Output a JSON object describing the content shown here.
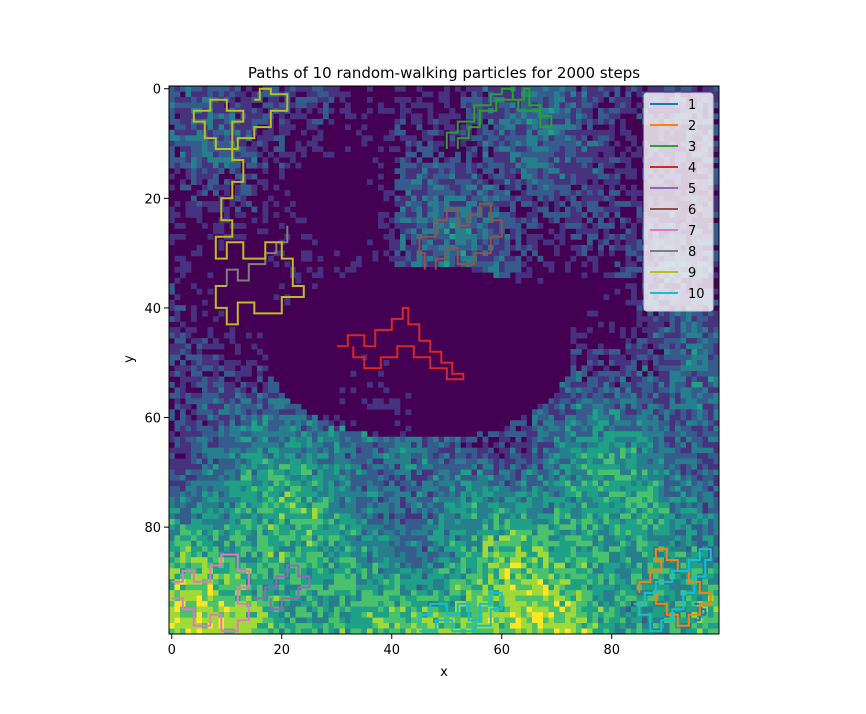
{
  "chart_data": {
    "type": "heatmap",
    "title": "Paths of 10 random-walking particles for 2000 steps",
    "xlabel": "x",
    "ylabel": "y",
    "xlim": [
      0,
      99
    ],
    "ylim": [
      99,
      0
    ],
    "y_inverted": true,
    "grid": false,
    "xticks": [
      0,
      20,
      40,
      60,
      80
    ],
    "yticks": [
      0,
      20,
      40,
      60,
      80
    ],
    "colormap": "viridis",
    "legend": {
      "placement": "top-right"
    },
    "series": [
      {
        "name": "1",
        "color": "#1f77b4",
        "points": [
          [
            95,
            94
          ],
          [
            96,
            94
          ],
          [
            96,
            95
          ],
          [
            97,
            95
          ],
          [
            97,
            96
          ],
          [
            96,
            96
          ],
          [
            96,
            97
          ],
          [
            95,
            97
          ]
        ]
      },
      {
        "name": "2",
        "color": "#ff7f0e",
        "points": [
          [
            85,
            92
          ],
          [
            85,
            90
          ],
          [
            87,
            90
          ],
          [
            87,
            88
          ],
          [
            89,
            88
          ],
          [
            89,
            86
          ],
          [
            88,
            86
          ],
          [
            88,
            84
          ],
          [
            90,
            84
          ],
          [
            90,
            86
          ],
          [
            92,
            86
          ],
          [
            92,
            88
          ],
          [
            94,
            88
          ],
          [
            94,
            90
          ],
          [
            96,
            90
          ],
          [
            96,
            92
          ],
          [
            98,
            92
          ],
          [
            98,
            94
          ],
          [
            96,
            94
          ],
          [
            96,
            96
          ],
          [
            94,
            96
          ],
          [
            94,
            98
          ],
          [
            92,
            98
          ],
          [
            92,
            96
          ],
          [
            90,
            96
          ],
          [
            90,
            94
          ],
          [
            88,
            94
          ],
          [
            88,
            92
          ],
          [
            86,
            92
          ],
          [
            86,
            94
          ],
          [
            84,
            94
          ]
        ]
      },
      {
        "name": "3",
        "color": "#2ca02c",
        "points": [
          [
            50,
            11
          ],
          [
            50,
            8
          ],
          [
            52,
            8
          ],
          [
            52,
            6
          ],
          [
            55,
            6
          ],
          [
            55,
            3
          ],
          [
            58,
            3
          ],
          [
            58,
            1
          ],
          [
            60,
            1
          ],
          [
            60,
            0
          ],
          [
            62,
            0
          ],
          [
            62,
            2
          ],
          [
            64,
            2
          ],
          [
            64,
            0
          ],
          [
            65,
            0
          ],
          [
            65,
            3
          ],
          [
            67,
            3
          ],
          [
            67,
            5
          ],
          [
            69,
            5
          ],
          [
            69,
            7
          ],
          [
            67,
            7
          ],
          [
            67,
            4
          ],
          [
            63,
            4
          ],
          [
            63,
            2
          ],
          [
            59,
            2
          ],
          [
            59,
            4
          ],
          [
            56,
            4
          ],
          [
            56,
            7
          ],
          [
            54,
            7
          ],
          [
            54,
            9
          ],
          [
            52,
            9
          ],
          [
            52,
            11
          ]
        ]
      },
      {
        "name": "4",
        "color": "#d62728",
        "points": [
          [
            30,
            47
          ],
          [
            32,
            47
          ],
          [
            32,
            45
          ],
          [
            35,
            45
          ],
          [
            35,
            47
          ],
          [
            37,
            47
          ],
          [
            37,
            44
          ],
          [
            40,
            44
          ],
          [
            40,
            42
          ],
          [
            42,
            42
          ],
          [
            42,
            40
          ],
          [
            43,
            40
          ],
          [
            43,
            43
          ],
          [
            45,
            43
          ],
          [
            45,
            46
          ],
          [
            47,
            46
          ],
          [
            47,
            48
          ],
          [
            49,
            48
          ],
          [
            49,
            50
          ],
          [
            51,
            50
          ],
          [
            51,
            52
          ],
          [
            53,
            52
          ],
          [
            53,
            53
          ],
          [
            50,
            53
          ],
          [
            50,
            51
          ],
          [
            47,
            51
          ],
          [
            47,
            49
          ],
          [
            44,
            49
          ],
          [
            44,
            47
          ],
          [
            41,
            47
          ],
          [
            41,
            49
          ],
          [
            38,
            49
          ],
          [
            38,
            51
          ],
          [
            35,
            51
          ],
          [
            35,
            49
          ],
          [
            33,
            49
          ],
          [
            33,
            47
          ]
        ]
      },
      {
        "name": "5",
        "color": "#9467bd",
        "points": [
          [
            15,
            93
          ],
          [
            17,
            93
          ],
          [
            17,
            91
          ],
          [
            19,
            91
          ],
          [
            19,
            89
          ],
          [
            21,
            89
          ],
          [
            21,
            87
          ],
          [
            23,
            87
          ],
          [
            23,
            89
          ],
          [
            25,
            89
          ],
          [
            25,
            91
          ],
          [
            23,
            91
          ],
          [
            23,
            93
          ],
          [
            20,
            93
          ],
          [
            20,
            95
          ],
          [
            18,
            95
          ],
          [
            18,
            93
          ]
        ]
      },
      {
        "name": "6",
        "color": "#8c564b",
        "points": [
          [
            46,
            33
          ],
          [
            46,
            30
          ],
          [
            45,
            30
          ],
          [
            45,
            27
          ],
          [
            48,
            27
          ],
          [
            48,
            24
          ],
          [
            50,
            24
          ],
          [
            50,
            22
          ],
          [
            52,
            22
          ],
          [
            52,
            25
          ],
          [
            54,
            25
          ],
          [
            54,
            23
          ],
          [
            56,
            23
          ],
          [
            56,
            21
          ],
          [
            58,
            21
          ],
          [
            58,
            24
          ],
          [
            60,
            24
          ],
          [
            60,
            27
          ],
          [
            58,
            27
          ],
          [
            58,
            30
          ],
          [
            55,
            30
          ],
          [
            55,
            32
          ],
          [
            52,
            32
          ],
          [
            52,
            29
          ],
          [
            50,
            29
          ],
          [
            50,
            31
          ],
          [
            48,
            31
          ],
          [
            48,
            33
          ]
        ]
      },
      {
        "name": "7",
        "color": "#e377c2",
        "points": [
          [
            0,
            90
          ],
          [
            2,
            90
          ],
          [
            2,
            88
          ],
          [
            4,
            88
          ],
          [
            4,
            90
          ],
          [
            7,
            90
          ],
          [
            7,
            87
          ],
          [
            9,
            87
          ],
          [
            9,
            85
          ],
          [
            12,
            85
          ],
          [
            12,
            88
          ],
          [
            14,
            88
          ],
          [
            14,
            91
          ],
          [
            12,
            91
          ],
          [
            12,
            94
          ],
          [
            14,
            94
          ],
          [
            14,
            97
          ],
          [
            12,
            97
          ],
          [
            12,
            99
          ],
          [
            9,
            99
          ],
          [
            9,
            96
          ],
          [
            7,
            96
          ],
          [
            7,
            98
          ],
          [
            4,
            98
          ],
          [
            4,
            95
          ],
          [
            2,
            95
          ],
          [
            2,
            93
          ],
          [
            0,
            93
          ]
        ]
      },
      {
        "name": "8",
        "color": "#7f7f7f",
        "points": [
          [
            10,
            36
          ],
          [
            10,
            33
          ],
          [
            12,
            33
          ],
          [
            12,
            35
          ],
          [
            14,
            35
          ],
          [
            14,
            32
          ],
          [
            17,
            32
          ],
          [
            17,
            30
          ],
          [
            19,
            30
          ],
          [
            19,
            28
          ],
          [
            21,
            28
          ],
          [
            21,
            25
          ]
        ]
      },
      {
        "name": "9",
        "color": "#bcbd22",
        "points": [
          [
            15,
            2
          ],
          [
            16,
            2
          ],
          [
            16,
            0
          ],
          [
            18,
            0
          ],
          [
            18,
            1
          ],
          [
            21,
            1
          ],
          [
            21,
            4
          ],
          [
            18,
            4
          ],
          [
            18,
            7
          ],
          [
            15,
            7
          ],
          [
            15,
            9
          ],
          [
            12,
            9
          ],
          [
            12,
            11
          ],
          [
            8,
            11
          ],
          [
            8,
            9
          ],
          [
            6,
            9
          ],
          [
            6,
            6
          ],
          [
            4,
            6
          ],
          [
            4,
            4
          ],
          [
            7,
            4
          ],
          [
            7,
            2
          ],
          [
            10,
            2
          ],
          [
            10,
            4
          ],
          [
            13,
            4
          ],
          [
            13,
            6
          ],
          [
            11,
            6
          ],
          [
            11,
            13
          ],
          [
            13,
            13
          ],
          [
            13,
            17
          ],
          [
            11,
            17
          ],
          [
            11,
            20
          ],
          [
            9,
            20
          ],
          [
            9,
            24
          ],
          [
            11,
            24
          ],
          [
            11,
            27
          ],
          [
            8,
            27
          ],
          [
            8,
            31
          ],
          [
            10,
            31
          ],
          [
            10,
            28
          ],
          [
            13,
            28
          ],
          [
            13,
            31
          ],
          [
            17,
            31
          ],
          [
            17,
            28
          ],
          [
            20,
            28
          ],
          [
            20,
            31
          ],
          [
            22,
            31
          ],
          [
            22,
            36
          ],
          [
            24,
            36
          ],
          [
            24,
            38
          ],
          [
            20,
            38
          ],
          [
            20,
            41
          ],
          [
            15,
            41
          ],
          [
            15,
            39
          ],
          [
            12,
            39
          ],
          [
            12,
            43
          ],
          [
            10,
            43
          ],
          [
            10,
            40
          ],
          [
            8,
            40
          ],
          [
            8,
            36
          ],
          [
            10,
            36
          ]
        ]
      },
      {
        "name": "10",
        "color": "#17becf",
        "points": [
          [
            45,
            98
          ],
          [
            45,
            96
          ],
          [
            47,
            96
          ],
          [
            47,
            94
          ],
          [
            50,
            94
          ],
          [
            50,
            96
          ],
          [
            52,
            96
          ],
          [
            52,
            94
          ],
          [
            54,
            94
          ],
          [
            54,
            97
          ],
          [
            56,
            97
          ],
          [
            56,
            94
          ],
          [
            58,
            94
          ],
          [
            58,
            92
          ],
          [
            60,
            92
          ],
          [
            60,
            95
          ],
          [
            58,
            95
          ],
          [
            58,
            98
          ],
          [
            55,
            98
          ],
          [
            55,
            99
          ],
          [
            51,
            99
          ],
          [
            51,
            97
          ],
          [
            48,
            97
          ],
          [
            48,
            99
          ],
          [
            45,
            99
          ]
        ]
      },
      {
        "name": "",
        "color": "#17becf",
        "points": [
          [
            84,
            94
          ],
          [
            86,
            94
          ],
          [
            86,
            92
          ],
          [
            88,
            92
          ],
          [
            88,
            90
          ],
          [
            91,
            90
          ],
          [
            91,
            88
          ],
          [
            94,
            88
          ],
          [
            94,
            86
          ],
          [
            96,
            86
          ],
          [
            96,
            84
          ],
          [
            98,
            84
          ],
          [
            98,
            86
          ],
          [
            97,
            86
          ],
          [
            97,
            89
          ],
          [
            95,
            89
          ],
          [
            95,
            92
          ],
          [
            93,
            92
          ],
          [
            93,
            95
          ],
          [
            91,
            95
          ],
          [
            91,
            97
          ],
          [
            89,
            97
          ],
          [
            89,
            99
          ],
          [
            87,
            99
          ],
          [
            87,
            96
          ],
          [
            85,
            96
          ],
          [
            85,
            94
          ]
        ]
      }
    ]
  }
}
